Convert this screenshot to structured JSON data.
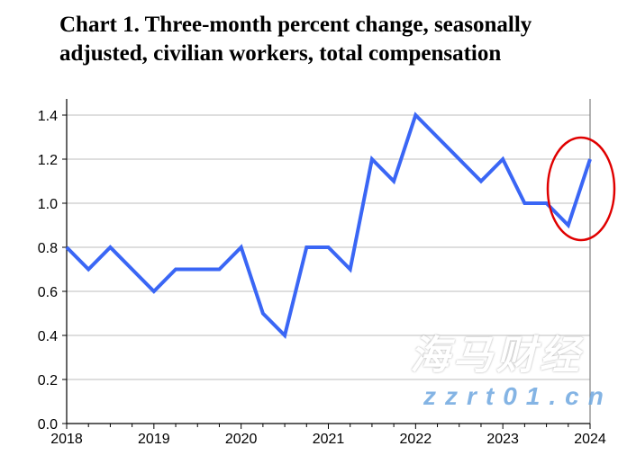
{
  "chart_data": {
    "type": "line",
    "title": "Chart 1. Three-month percent change, seasonally adjusted, civilian workers, total compensation",
    "xlabel": "",
    "ylabel": "",
    "x_tick_labels": [
      "2018",
      "2019",
      "2020",
      "2021",
      "2022",
      "2023",
      "2024"
    ],
    "y_tick_labels": [
      "0.0",
      "0.2",
      "0.4",
      "0.6",
      "0.8",
      "1.0",
      "1.2",
      "1.4"
    ],
    "ylim": [
      0,
      1.4
    ],
    "grid": true,
    "x": [
      "2018 Q1",
      "2018 Q2",
      "2018 Q3",
      "2018 Q4",
      "2019 Q1",
      "2019 Q2",
      "2019 Q3",
      "2019 Q4",
      "2020 Q1",
      "2020 Q2",
      "2020 Q3",
      "2020 Q4",
      "2021 Q1",
      "2021 Q2",
      "2021 Q3",
      "2021 Q4",
      "2022 Q1",
      "2022 Q2",
      "2022 Q3",
      "2022 Q4",
      "2023 Q1",
      "2023 Q2",
      "2023 Q3",
      "2023 Q4",
      "2024 Q1"
    ],
    "series": [
      {
        "values": [
          0.8,
          0.7,
          0.8,
          0.7,
          0.6,
          0.7,
          0.7,
          0.7,
          0.8,
          0.5,
          0.4,
          0.8,
          0.8,
          0.7,
          1.2,
          1.1,
          1.4,
          1.3,
          1.2,
          1.1,
          1.2,
          1.0,
          1.0,
          0.9,
          1.2
        ],
        "color": "#3a66f5"
      }
    ],
    "annotation": {
      "type": "ellipse",
      "color": "#e00000",
      "highlights": [
        "2023 Q4",
        "2024 Q1"
      ]
    }
  },
  "watermark": {
    "text": "海马财经",
    "url_text": "zzrt01.cn"
  }
}
